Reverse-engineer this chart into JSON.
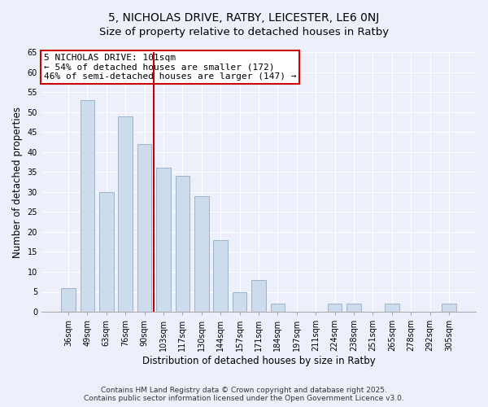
{
  "title": "5, NICHOLAS DRIVE, RATBY, LEICESTER, LE6 0NJ",
  "subtitle": "Size of property relative to detached houses in Ratby",
  "xlabel": "Distribution of detached houses by size in Ratby",
  "ylabel": "Number of detached properties",
  "bar_labels": [
    "36sqm",
    "49sqm",
    "63sqm",
    "76sqm",
    "90sqm",
    "103sqm",
    "117sqm",
    "130sqm",
    "144sqm",
    "157sqm",
    "171sqm",
    "184sqm",
    "197sqm",
    "211sqm",
    "224sqm",
    "238sqm",
    "251sqm",
    "265sqm",
    "278sqm",
    "292sqm",
    "305sqm"
  ],
  "bar_values": [
    6,
    53,
    30,
    49,
    42,
    36,
    34,
    29,
    18,
    5,
    8,
    2,
    0,
    0,
    2,
    2,
    0,
    2,
    0,
    0,
    2
  ],
  "bar_color": "#cddcec",
  "bar_edge_color": "#9ab4cc",
  "vline_x_index": 5,
  "vline_color": "#cc0000",
  "annotation_box_text": "5 NICHOLAS DRIVE: 101sqm\n← 54% of detached houses are smaller (172)\n46% of semi-detached houses are larger (147) →",
  "annotation_box_color": "#ffffff",
  "annotation_box_edge_color": "#cc0000",
  "ylim": [
    0,
    65
  ],
  "yticks": [
    0,
    5,
    10,
    15,
    20,
    25,
    30,
    35,
    40,
    45,
    50,
    55,
    60,
    65
  ],
  "background_color": "#edf0fb",
  "grid_color": "#ffffff",
  "footer_line1": "Contains HM Land Registry data © Crown copyright and database right 2025.",
  "footer_line2": "Contains public sector information licensed under the Open Government Licence v3.0.",
  "title_fontsize": 10,
  "subtitle_fontsize": 9.5,
  "tick_fontsize": 7,
  "xlabel_fontsize": 8.5,
  "ylabel_fontsize": 8.5,
  "annotation_fontsize": 8,
  "footer_fontsize": 6.5
}
